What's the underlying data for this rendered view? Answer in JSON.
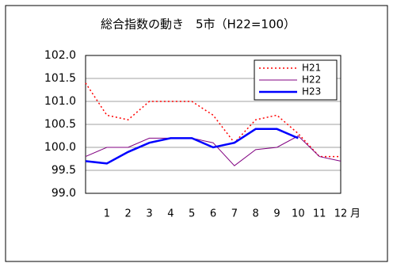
{
  "chart_data": {
    "type": "line",
    "title": "総合指数の動き　5市（H22=100）",
    "x_label": "月",
    "categories": [
      null,
      "1",
      "2",
      "3",
      "4",
      "5",
      "6",
      "7",
      "8",
      "9",
      "10",
      "11",
      "12"
    ],
    "series": [
      {
        "name": "H21",
        "color": "#ff0000",
        "style": "dotted",
        "width": 1.5,
        "values": [
          101.4,
          100.7,
          100.6,
          101.0,
          101.0,
          101.0,
          100.7,
          100.1,
          100.6,
          100.7,
          100.3,
          99.8,
          99.8
        ]
      },
      {
        "name": "H22",
        "color": "#800080",
        "style": "solid",
        "width": 1,
        "values": [
          99.8,
          100.0,
          100.0,
          100.2,
          100.2,
          100.2,
          100.1,
          99.6,
          99.95,
          100.0,
          100.25,
          99.8,
          99.7
        ]
      },
      {
        "name": "H23",
        "color": "#0000ff",
        "style": "solid",
        "width": 2.5,
        "values": [
          99.7,
          99.65,
          99.9,
          100.1,
          100.2,
          100.2,
          100.0,
          100.1,
          100.4,
          100.4,
          100.2,
          null,
          null
        ]
      }
    ],
    "ylim": [
      99.0,
      102.0
    ],
    "yticks": [
      {
        "value": 99,
        "label": "99.0"
      },
      99.5,
      {
        "value": 100,
        "label": "100.0"
      },
      100.5,
      {
        "value": 101,
        "label": "101.0"
      },
      101.5,
      {
        "value": 102,
        "label": "102.0"
      }
    ],
    "grid": true,
    "legend": "upper-right"
  }
}
